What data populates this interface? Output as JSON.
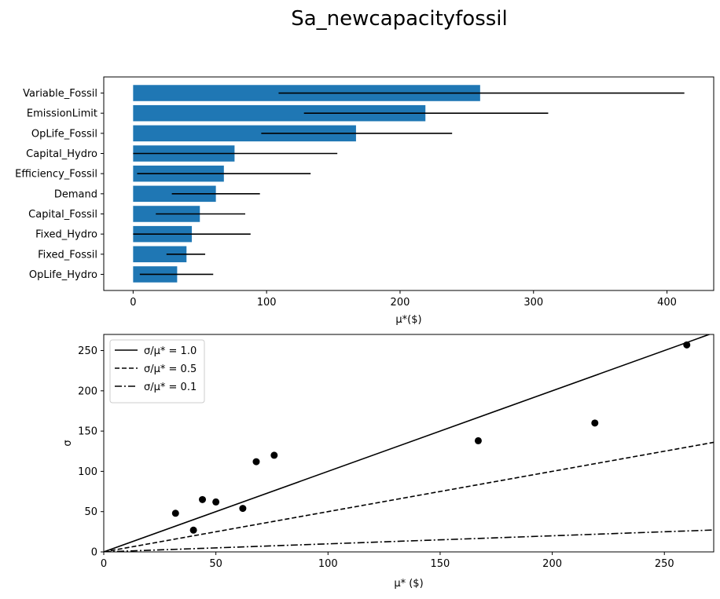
{
  "title": "Sa_newcapacityfossil",
  "chart_data": [
    {
      "type": "bar",
      "orientation": "horizontal",
      "categories": [
        "Variable_Fossil",
        "EmissionLimit",
        "OpLife_Fossil",
        "Capital_Hydro",
        "Efficiency_Fossil",
        "Demand",
        "Capital_Fossil",
        "Fixed_Hydro",
        "Fixed_Fossil",
        "OpLife_Hydro"
      ],
      "values": [
        260,
        219,
        167,
        76,
        68,
        62,
        50,
        44,
        40,
        33
      ],
      "error_low": [
        109,
        128,
        96,
        0,
        3,
        29,
        17,
        0,
        25,
        5
      ],
      "error_high": [
        413,
        311,
        239,
        153,
        133,
        95,
        84,
        88,
        54,
        60
      ],
      "bar_color": "#1f77b4",
      "error_color": "#000000",
      "xlabel": "μ*($)",
      "xlim": [
        -22,
        435
      ],
      "xticks": [
        0,
        100,
        200,
        300,
        400
      ]
    },
    {
      "type": "scatter",
      "points": [
        {
          "x": 260,
          "y": 257
        },
        {
          "x": 219,
          "y": 160
        },
        {
          "x": 167,
          "y": 138
        },
        {
          "x": 76,
          "y": 120
        },
        {
          "x": 68,
          "y": 112
        },
        {
          "x": 62,
          "y": 54
        },
        {
          "x": 50,
          "y": 62
        },
        {
          "x": 44,
          "y": 65
        },
        {
          "x": 40,
          "y": 27
        },
        {
          "x": 32,
          "y": 48
        }
      ],
      "point_color": "#000000",
      "lines": [
        {
          "name": "σ/μ* = 1.0",
          "slope": 1.0,
          "style": "solid"
        },
        {
          "name": "σ/μ* = 0.5",
          "slope": 0.5,
          "style": "dashed"
        },
        {
          "name": "σ/μ* = 0.1",
          "slope": 0.1,
          "style": "dashdot"
        }
      ],
      "xlabel": "μ*  ($)",
      "ylabel": "σ",
      "xlim": [
        0,
        272
      ],
      "ylim": [
        0,
        270
      ],
      "xticks": [
        0,
        50,
        100,
        150,
        200,
        250
      ],
      "yticks": [
        0,
        50,
        100,
        150,
        200,
        250
      ],
      "legend": "upper-left"
    }
  ]
}
